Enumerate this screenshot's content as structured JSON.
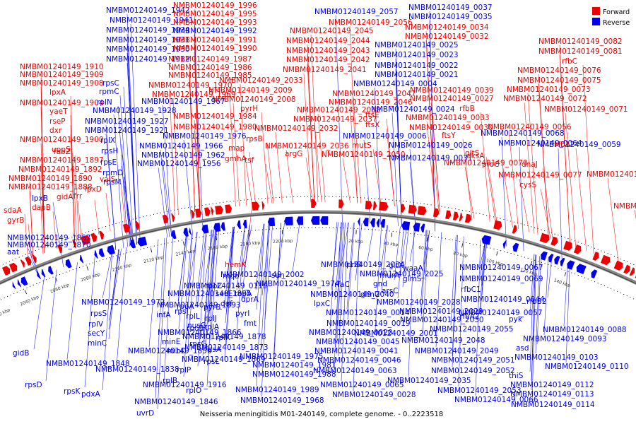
{
  "legend": [
    {
      "label": "Forward",
      "color": "#ee0000"
    },
    {
      "label": "Reverse",
      "color": "#0000ee"
    }
  ],
  "caption": "Neisseria meningitidis M01-240149, complete genome. - 0..2223518",
  "ticks": [
    "2020 kbp",
    "2040 kbp",
    "2060 kbp",
    "2080 kbp",
    "2100 kbp",
    "2120 kbp",
    "2140 kbp",
    "2160 kbp",
    "2180 kbp",
    "2200 kbp",
    "20 kbp",
    "40 kbp",
    "60 kbp",
    "80 kbp",
    "100 kbp",
    "120 kbp",
    "140 kbp"
  ],
  "labels_reverse": [
    "NMBM01240149_1942",
    "NMBM01240149_1941",
    "NMBM01240149_1934",
    "NMBM01240149_1931",
    "NMBM01240149_1930",
    "NMBM01240149_1912",
    "rpsC",
    "rpmC",
    "rplN",
    "NMBM01240149_1928",
    "NMBM01240149_1927",
    "NMBM01240149_1921",
    "rplX",
    "rpsH",
    "rpsE",
    "rpmD",
    "rpsM",
    "NMBM01240149_1976",
    "NMBM01240149_1966",
    "NMBM01240149_1962",
    "NMBM01240149_1956",
    "NMBM01240149_1992",
    "NMBM01240149_1967",
    "NMBM01240149_2057",
    "NMBM01240149_0037",
    "NMBM01240149_0035",
    "NMBM01240149_0025",
    "NMBM01240149_0023",
    "NMBM01240149_0022",
    "NMBM01240149_0021",
    "NMBM01240149_0004",
    "NMBM01240149_0024",
    "NMBM01240149_0006",
    "NMBM01240149_0026",
    "NMBM01240149_0031",
    "NMBM01240149_0068",
    "NMBM01240149_0064",
    "NMBM01240149_0059",
    "NMBM01240149_2002",
    "NMBM01240149_1974",
    "NMBM01240149_2034",
    "NMBM01240149_2040",
    "NMBM01240149_2025",
    "NMBM01240149_2028",
    "NMBM01240149_2029",
    "NMBM01240149_2030",
    "NMBM01240149_2001",
    "NMBM01240149_2055",
    "NMBM01240149_2048",
    "NMBM01240149_2049",
    "NMBM01240149_2051",
    "NMBM01240149_2052",
    "NMBM01240149_2035",
    "NMBM01240149_2053",
    "NMBM01240149_1975",
    "NMBM01240149_1981",
    "NMBM01240149_1988",
    "NMBM01240149_1989",
    "NMBM01240149_1968",
    "NMBM01240149_1972",
    "NMBM01240149_1895",
    "NMBM01240149_1893",
    "NMBM01240149_1878",
    "NMBM01240149_1866",
    "NMBM01240149_1856",
    "NMBM01240149_1848",
    "NMBM01240149_1838",
    "NMBM01240149_1873",
    "NMBM01240149_1869",
    "NMBM01240149_1846",
    "NMBM01240149_1857",
    "NMBM01240149_1870",
    "NMBM01240149_1916",
    "NMBM01240149_0014",
    "NMBM01240149_0019",
    "NMBM01240149_0020",
    "NMBM01240149_0045",
    "NMBM01240149_0041",
    "NMBM01240149_0046",
    "NMBM01240149_0063",
    "NMBM01240149_0065",
    "NMBM01240149_0028",
    "NMBM01240149_0066",
    "NMBM01240149_0067",
    "NMBM01240149_0069",
    "NMBM01240149_0044",
    "NMBM01240149_0057",
    "NMBM01240149_0088",
    "NMBM01240149_0093",
    "NMBM01240149_0103",
    "NMBM01240149_0110",
    "NMBM01240149_0112",
    "NMBM01240149_0113",
    "NMBM01240149_0114",
    "NMBM01240149_0119",
    "lpxB",
    "rpsS",
    "rplV",
    "infA",
    "rpoA",
    "rpsI",
    "rplL",
    "rplB",
    "rplP",
    "rplO",
    "rpsG",
    "rpsL",
    "rpsD",
    "rpsK",
    "secY",
    "secE",
    "minE",
    "minD",
    "minC",
    "fusA",
    "rpoC",
    "rplJ",
    "rplA",
    "rplK",
    "nusG",
    "pyrB",
    "fmt",
    "pyrI",
    "dprA",
    "def",
    "topA",
    "sun",
    "mqo",
    "prfB",
    "rfaC",
    "glmS",
    "glmU",
    "gltX",
    "gnd",
    "murA",
    "waaA",
    "lpxC",
    "arsC",
    "rfbC1",
    "rfbA2",
    "rfbB2",
    "gidB",
    "pdxA",
    "uvrD",
    "aat",
    "pyk",
    "asd",
    "thiS"
  ],
  "labels_forward": [
    "NMBM01240149_1996",
    "NMBM01240149_1995",
    "NMBM01240149_1993",
    "NMBM01240149_1991",
    "NMBM01240149_1990",
    "NMBM01240149_1987",
    "NMBM01240149_1986",
    "NMBM01240149_1985",
    "NMBM01240149_1970",
    "NMBM01240149_1969",
    "NMBM01240149_2009",
    "NMBM01240149_2008",
    "NMBM01240149_1984",
    "NMBM01240149_1980",
    "NMBM01240149_2045",
    "NMBM01240149_2044",
    "NMBM01240149_2043",
    "NMBM01240149_2042",
    "NMBM01240149_2041",
    "NMBM01240149_2033",
    "NMBM01240149_2056",
    "NMBM01240149_2047",
    "NMBM01240149_2046",
    "NMBM01240149_2038",
    "NMBM01240149_2037",
    "NMBM01240149_2032",
    "NMBM01240149_2036",
    "NMBM01240149_2050",
    "NMBM01240149_0034",
    "NMBM01240149_0032",
    "NMBM01240149_0039",
    "NMBM01240149_0027",
    "NMBM01240149_0033",
    "NMBM01240149_0030",
    "NMBM01240149_0082",
    "NMBM01240149_0081",
    "NMBM01240149_0076",
    "NMBM01240149_0075",
    "NMBM01240149_0073",
    "NMBM01240149_0072",
    "NMBM01240149_0071",
    "NMBM01240149_0056",
    "NMBM01240149_0070",
    "NMBM01240149_0077",
    "NMBM01240149_0074",
    "NMBM01240149_0087",
    "NMBM01240149_1910",
    "NMBM01240149_1909",
    "NMBM01240149_1908",
    "NMBM01240149_1904",
    "NMBM01240149_1900",
    "NMBM01240149_1897",
    "NMBM01240149_1892",
    "NMBM01240149_1890",
    "NMBM01240149_1888",
    "lpxA",
    "yaeT",
    "rseP",
    "dxr",
    "uppS",
    "fabZ",
    "valS",
    "frr",
    "gidA",
    "lpxD",
    "sdaA",
    "gyrB",
    "dapB",
    "pyrH",
    "rpsB",
    "map",
    "tsf",
    "gmhA",
    "argG",
    "mutS",
    "ftsX",
    "ftsE",
    "ftsY",
    "dksA",
    "proC",
    "dnaJ",
    "rfbA",
    "gltS",
    "rfbB",
    "rfbC",
    "cysS",
    "hemK"
  ],
  "callouts": [
    {
      "text": "NMBM01240149_1942",
      "s": "r"
    },
    {
      "text": "NMBM01240149_1941",
      "s": "r"
    },
    {
      "text": "NMBM01240149_1934",
      "s": "r"
    },
    {
      "text": "NMBM01240149_1931",
      "s": "r"
    },
    {
      "text": "NMBM01240149_1930",
      "s": "r"
    },
    {
      "text": "NMBM01240149_1912",
      "s": "r"
    },
    {
      "text": "NMBM01240149_1910",
      "s": "f"
    },
    {
      "text": "NMBM01240149_1909",
      "s": "f"
    },
    {
      "text": "NMBM01240149_1908",
      "s": "f"
    },
    {
      "text": "lpxA",
      "s": "f"
    },
    {
      "text": "NMBM01240149_1904",
      "s": "f"
    },
    {
      "text": "yaeT",
      "s": "f"
    },
    {
      "text": "rseP",
      "s": "f"
    },
    {
      "text": "dxr",
      "s": "f"
    },
    {
      "text": "NMBM01240149_1900",
      "s": "f"
    },
    {
      "text": "uppS",
      "s": "f"
    },
    {
      "text": "fabZ",
      "s": "f"
    },
    {
      "text": "NMBM01240149_1897",
      "s": "f"
    },
    {
      "text": "NMBM01240149_1892",
      "s": "f"
    },
    {
      "text": "NMBM01240149_1890",
      "s": "f"
    },
    {
      "text": "NMBM01240149_1888",
      "s": "f"
    },
    {
      "text": "lpxB",
      "s": "r"
    },
    {
      "text": "sdaA",
      "s": "f"
    },
    {
      "text": "gyrB",
      "s": "f"
    },
    {
      "text": "dapB",
      "s": "f"
    },
    {
      "text": "gidA",
      "s": "f"
    },
    {
      "text": "frr",
      "s": "f"
    },
    {
      "text": "lpxD",
      "s": "f"
    },
    {
      "text": "valS",
      "s": "f"
    },
    {
      "text": "rpsC",
      "s": "r"
    },
    {
      "text": "rpmC",
      "s": "r"
    },
    {
      "text": "rplN",
      "s": "r"
    },
    {
      "text": "NMBM01240149_1928",
      "s": "r"
    },
    {
      "text": "NMBM01240149_1927",
      "s": "r"
    },
    {
      "text": "NMBM01240149_1921",
      "s": "r"
    },
    {
      "text": "rplX",
      "s": "r"
    },
    {
      "text": "rpsH",
      "s": "r"
    },
    {
      "text": "rpsE",
      "s": "r"
    },
    {
      "text": "rpmD",
      "s": "r"
    },
    {
      "text": "rpsM",
      "s": "r"
    },
    {
      "text": "NMBM01240149_1996",
      "s": "f"
    },
    {
      "text": "NMBM01240149_1995",
      "s": "f"
    },
    {
      "text": "NMBM01240149_1993",
      "s": "f"
    },
    {
      "text": "NMBM01240149_1992",
      "s": "r"
    },
    {
      "text": "NMBM01240149_1991",
      "s": "f"
    },
    {
      "text": "NMBM01240149_1990",
      "s": "f"
    },
    {
      "text": "NMBM01240149_1987",
      "s": "f"
    },
    {
      "text": "NMBM01240149_1986",
      "s": "f"
    },
    {
      "text": "NMBM01240149_1985",
      "s": "f"
    },
    {
      "text": "NMBM01240149_1970",
      "s": "f"
    },
    {
      "text": "NMBM01240149_1969",
      "s": "f"
    },
    {
      "text": "NMBM01240149_1967",
      "s": "r"
    },
    {
      "text": "NMBM01240149_2009",
      "s": "f"
    },
    {
      "text": "NMBM01240149_2008",
      "s": "f"
    },
    {
      "text": "NMBM01240149_1984",
      "s": "f"
    },
    {
      "text": "NMBM01240149_1980",
      "s": "f"
    },
    {
      "text": "NMBM01240149_1976",
      "s": "r"
    },
    {
      "text": "NMBM01240149_1966",
      "s": "r"
    },
    {
      "text": "NMBM01240149_1962",
      "s": "r"
    },
    {
      "text": "NMBM01240149_1956",
      "s": "r"
    },
    {
      "text": "pyrH",
      "s": "f"
    },
    {
      "text": "rpsB",
      "s": "f"
    },
    {
      "text": "map",
      "s": "f"
    },
    {
      "text": "tsf",
      "s": "f"
    },
    {
      "text": "gmhA",
      "s": "f"
    },
    {
      "text": "NMBM01240149_2057",
      "s": "r"
    },
    {
      "text": "NMBM01240149_2056",
      "s": "f"
    },
    {
      "text": "NMBM01240149_2045",
      "s": "f"
    },
    {
      "text": "NMBM01240149_2044",
      "s": "f"
    },
    {
      "text": "NMBM01240149_2043",
      "s": "f"
    },
    {
      "text": "NMBM01240149_2042",
      "s": "f"
    },
    {
      "text": "NMBM01240149_2041",
      "s": "f"
    },
    {
      "text": "NMBM01240149_2033",
      "s": "f"
    },
    {
      "text": "NMBM01240149_2047",
      "s": "f"
    },
    {
      "text": "NMBM01240149_2046",
      "s": "f"
    },
    {
      "text": "NMBM01240149_2038",
      "s": "f"
    },
    {
      "text": "NMBM01240149_2037",
      "s": "f"
    },
    {
      "text": "NMBM01240149_2032",
      "s": "f"
    },
    {
      "text": "NMBM01240149_2036",
      "s": "f"
    },
    {
      "text": "NMBM01240149_2050",
      "s": "f"
    },
    {
      "text": "argG",
      "s": "f"
    },
    {
      "text": "mutS",
      "s": "f"
    },
    {
      "text": "ftsX",
      "s": "f"
    },
    {
      "text": "ftsE",
      "s": "f"
    },
    {
      "text": "NMBM01240149_0037",
      "s": "r"
    },
    {
      "text": "NMBM01240149_0035",
      "s": "r"
    },
    {
      "text": "NMBM01240149_0034",
      "s": "f"
    },
    {
      "text": "NMBM01240149_0032",
      "s": "f"
    },
    {
      "text": "NMBM01240149_0025",
      "s": "r"
    },
    {
      "text": "NMBM01240149_0023",
      "s": "r"
    },
    {
      "text": "NMBM01240149_0022",
      "s": "r"
    },
    {
      "text": "NMBM01240149_0021",
      "s": "r"
    },
    {
      "text": "NMBM01240149_0004",
      "s": "r"
    },
    {
      "text": "NMBM01240149_0039",
      "s": "f"
    },
    {
      "text": "NMBM01240149_0027",
      "s": "f"
    },
    {
      "text": "NMBM01240149_0024",
      "s": "r"
    },
    {
      "text": "NMBM01240149_0033",
      "s": "f"
    },
    {
      "text": "NMBM01240149_0030",
      "s": "f"
    },
    {
      "text": "NMBM01240149_0006",
      "s": "r"
    },
    {
      "text": "NMBM01240149_0026",
      "s": "r"
    },
    {
      "text": "NMBM01240149_0031",
      "s": "r"
    },
    {
      "text": "ftsY",
      "s": "f"
    },
    {
      "text": "NMBM01240149_0082",
      "s": "f"
    },
    {
      "text": "NMBM01240149_0081",
      "s": "f"
    },
    {
      "text": "rfbC",
      "s": "f"
    },
    {
      "text": "NMBM01240149_0076",
      "s": "f"
    },
    {
      "text": "NMBM01240149_0075",
      "s": "f"
    },
    {
      "text": "NMBM01240149_0073",
      "s": "f"
    },
    {
      "text": "NMBM01240149_0072",
      "s": "f"
    },
    {
      "text": "NMBM01240149_0071",
      "s": "f"
    },
    {
      "text": "rfbB",
      "s": "f"
    },
    {
      "text": "NMBM01240149_0056",
      "s": "f"
    },
    {
      "text": "NMBM01240149_0068",
      "s": "r"
    },
    {
      "text": "NMBM01240149_0064",
      "s": "r"
    },
    {
      "text": "NMBM01240149_0059",
      "s": "r"
    },
    {
      "text": "rfbA",
      "s": "f"
    },
    {
      "text": "gltS",
      "s": "f"
    },
    {
      "text": "dksA",
      "s": "f"
    },
    {
      "text": "NMBM01240149_0070",
      "s": "f"
    },
    {
      "text": "proC",
      "s": "f"
    },
    {
      "text": "dnaJ",
      "s": "f"
    },
    {
      "text": "NMBM01240149_0077",
      "s": "f"
    },
    {
      "text": "NMBM01240149_0074",
      "s": "f"
    },
    {
      "text": "cysS",
      "s": "f"
    },
    {
      "text": "NMBM01240149_0087",
      "s": "f"
    },
    {
      "text": "hemK",
      "s": "f"
    },
    {
      "text": "NMBM01240149_2002",
      "s": "r"
    },
    {
      "text": "NMBM01240149_1974",
      "s": "r"
    },
    {
      "text": "mqo",
      "s": "r"
    },
    {
      "text": "sun",
      "s": "r"
    },
    {
      "text": "NMBM01240149_2034",
      "s": "r"
    },
    {
      "text": "prfB",
      "s": "r"
    },
    {
      "text": "rfaC",
      "s": "r"
    },
    {
      "text": "NMBM01240149_2040",
      "s": "r"
    },
    {
      "text": "NMBM01240149_2025",
      "s": "r"
    },
    {
      "text": "gltX",
      "s": "r"
    },
    {
      "text": "murA",
      "s": "r"
    },
    {
      "text": "gnd",
      "s": "r"
    },
    {
      "text": "waaA",
      "s": "r"
    },
    {
      "text": "glmS",
      "s": "r"
    },
    {
      "text": "glmU",
      "s": "r"
    },
    {
      "text": "arsC",
      "s": "r"
    },
    {
      "text": "lpxC",
      "s": "r"
    },
    {
      "text": "NMBM01240149_2028",
      "s": "r"
    },
    {
      "text": "NMBM01240149_0014",
      "s": "r"
    },
    {
      "text": "NMBM01240149_2029",
      "s": "r"
    },
    {
      "text": "NMBM01240149_0019",
      "s": "r"
    },
    {
      "text": "NMBM01240149_2030",
      "s": "r"
    },
    {
      "text": "NMBM01240149_0020",
      "s": "r"
    },
    {
      "text": "NMBM01240149_2001",
      "s": "r"
    },
    {
      "text": "NMBM01240149_2055",
      "s": "r"
    },
    {
      "text": "NMBM01240149_0045",
      "s": "r"
    },
    {
      "text": "NMBM01240149_2048",
      "s": "r"
    },
    {
      "text": "NMBM01240149_0041",
      "s": "r"
    },
    {
      "text": "NMBM01240149_2049",
      "s": "r"
    },
    {
      "text": "NMBM01240149_0046",
      "s": "r"
    },
    {
      "text": "NMBM01240149_2051",
      "s": "r"
    },
    {
      "text": "NMBM01240149_0063",
      "s": "r"
    },
    {
      "text": "NMBM01240149_2052",
      "s": "r"
    },
    {
      "text": "NMBM01240149_0065",
      "s": "r"
    },
    {
      "text": "NMBM01240149_2035",
      "s": "r"
    },
    {
      "text": "NMBM01240149_0028",
      "s": "r"
    },
    {
      "text": "NMBM01240149_2053",
      "s": "r"
    },
    {
      "text": "NMBM01240149_0066",
      "s": "r"
    },
    {
      "text": "NMBM01240149_0067",
      "s": "r"
    },
    {
      "text": "NMBM01240149_0069",
      "s": "r"
    },
    {
      "text": "rfbC1",
      "s": "r"
    },
    {
      "text": "NMBM01240149_0044",
      "s": "r"
    },
    {
      "text": "NMBM01240149_0057",
      "s": "r"
    },
    {
      "text": "rfbA2",
      "s": "r"
    },
    {
      "text": "rfbB2",
      "s": "r"
    },
    {
      "text": "pyk",
      "s": "r"
    },
    {
      "text": "NMBM01240149_0088",
      "s": "r"
    },
    {
      "text": "NMBM01240149_0093",
      "s": "r"
    },
    {
      "text": "asd",
      "s": "r"
    },
    {
      "text": "NMBM01240149_0103",
      "s": "r"
    },
    {
      "text": "NMBM01240149_0110",
      "s": "r"
    },
    {
      "text": "thiS",
      "s": "r"
    },
    {
      "text": "NMBM01240149_0112",
      "s": "r"
    },
    {
      "text": "NMBM01240149_0113",
      "s": "r"
    },
    {
      "text": "NMBM01240149_0114",
      "s": "r"
    },
    {
      "text": "NMBM01240149_0119",
      "s": "r"
    },
    {
      "text": "rpoC",
      "s": "r"
    },
    {
      "text": "secE",
      "s": "r"
    },
    {
      "text": "topA",
      "s": "r"
    },
    {
      "text": "def",
      "s": "r"
    },
    {
      "text": "dprA",
      "s": "r"
    },
    {
      "text": "pyrI",
      "s": "r"
    },
    {
      "text": "fmt",
      "s": "r"
    },
    {
      "text": "pyrB",
      "s": "r"
    },
    {
      "text": "rplJ",
      "s": "r"
    },
    {
      "text": "rplA",
      "s": "r"
    },
    {
      "text": "rplK",
      "s": "r"
    },
    {
      "text": "nusG",
      "s": "r"
    },
    {
      "text": "fusA",
      "s": "r"
    },
    {
      "text": "rpsL",
      "s": "r"
    },
    {
      "text": "rpsG",
      "s": "r"
    },
    {
      "text": "NMBM01240149_1975",
      "s": "r"
    },
    {
      "text": "NMBM01240149_1981",
      "s": "r"
    },
    {
      "text": "NMBM01240149_1988",
      "s": "r"
    },
    {
      "text": "NMBM01240149_1989",
      "s": "r"
    },
    {
      "text": "NMBM01240149_1968",
      "s": "r"
    },
    {
      "text": "NMBM01240149_1972",
      "s": "r"
    },
    {
      "text": "NMBM01240149_1895",
      "s": "r"
    },
    {
      "text": "rpsS",
      "s": "r"
    },
    {
      "text": "NMBM01240149_1893",
      "s": "r"
    },
    {
      "text": "infA",
      "s": "r"
    },
    {
      "text": "rpoA",
      "s": "r"
    },
    {
      "text": "rpsI",
      "s": "r"
    },
    {
      "text": "rplV",
      "s": "r"
    },
    {
      "text": "NMBM01240149_1878",
      "s": "r"
    },
    {
      "text": "rplL",
      "s": "r"
    },
    {
      "text": "rpoB",
      "s": "r"
    },
    {
      "text": "secY",
      "s": "r"
    },
    {
      "text": "NMBM01240149_1866",
      "s": "r"
    },
    {
      "text": "minE",
      "s": "r"
    },
    {
      "text": "minD",
      "s": "r"
    },
    {
      "text": "minC",
      "s": "r"
    },
    {
      "text": "NMBM01240149_1856",
      "s": "r"
    },
    {
      "text": "gidB",
      "s": "r"
    },
    {
      "text": "NMBM01240149_1848",
      "s": "r"
    },
    {
      "text": "NMBM01240149_1838",
      "s": "r"
    },
    {
      "text": "NMBM01240149_1873",
      "s": "r"
    },
    {
      "text": "NMBM01240149_1869",
      "s": "r"
    },
    {
      "text": "rplP",
      "s": "r"
    },
    {
      "text": "rplB",
      "s": "r"
    },
    {
      "text": "rplO",
      "s": "r"
    },
    {
      "text": "rpsD",
      "s": "r"
    },
    {
      "text": "NMBM01240149_1916",
      "s": "r"
    },
    {
      "text": "rpsK",
      "s": "r"
    },
    {
      "text": "pdxA",
      "s": "r"
    },
    {
      "text": "NMBM01240149_1846",
      "s": "r"
    },
    {
      "text": "uvrD",
      "s": "r"
    },
    {
      "text": "NMBM01240149_1857",
      "s": "r"
    },
    {
      "text": "NMBM01240149_1870",
      "s": "r"
    },
    {
      "text": "aat",
      "s": "r"
    }
  ]
}
